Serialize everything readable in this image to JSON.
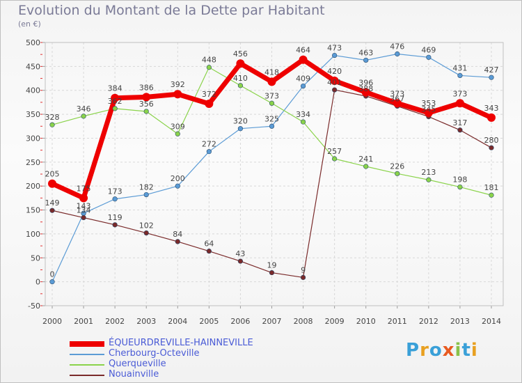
{
  "header": {
    "title": "Evolution du Montant de la Dette par Habitant",
    "subtitle": "(en €)"
  },
  "logo": {
    "letters": [
      "P",
      "r",
      "o",
      "x",
      "i",
      "t",
      "i"
    ],
    "colors": [
      "#3aa0d8",
      "#e8a020",
      "#3aa0d8",
      "#e85a20",
      "#8ac24a",
      "#3aa0d8",
      "#e8a020"
    ]
  },
  "chart_data": {
    "type": "line",
    "title": "Evolution du Montant de la Dette par Habitant",
    "ylabel": "(en €)",
    "xlabel": "",
    "x": [
      "2000",
      "2001",
      "2002",
      "2003",
      "2004",
      "2005",
      "2006",
      "2007",
      "2008",
      "2009",
      "2010",
      "2011",
      "2012",
      "2013",
      "2014"
    ],
    "ylim": [
      -50,
      500
    ],
    "yticks": [
      "500",
      "450",
      "400",
      "350",
      "300",
      "250",
      "200",
      "150",
      "100",
      "50",
      "0",
      "-50"
    ],
    "grid": true,
    "legend_position": "bottom-left",
    "series": [
      {
        "name": "ÉQUEURDREVILLE-HAINNEVILLE",
        "color": "#ee0000",
        "values": [
          205,
          175,
          384,
          386,
          392,
          372,
          456,
          418,
          464,
          420,
          396,
          373,
          353,
          373,
          343
        ],
        "labels": [
          "205",
          "175",
          "384",
          "386",
          "392",
          "372",
          "456",
          "418",
          "464",
          "420",
          "396",
          "373",
          "353",
          "373",
          "343"
        ]
      },
      {
        "name": "Cherbourg-Octeville",
        "color": "#5b9bd5",
        "values": [
          0,
          143,
          173,
          182,
          200,
          272,
          320,
          325,
          409,
          473,
          463,
          476,
          469,
          431,
          427
        ],
        "labels": [
          "0",
          "143",
          "173",
          "182",
          "200",
          "272",
          "320",
          "325",
          "409",
          "473",
          "463",
          "476",
          "469",
          "431",
          "427"
        ]
      },
      {
        "name": "Querqueville",
        "color": "#8ad34a",
        "values": [
          328,
          346,
          362,
          356,
          309,
          448,
          410,
          373,
          334,
          257,
          241,
          226,
          213,
          198,
          181
        ],
        "labels": [
          "328",
          "346",
          "362",
          "356",
          "309",
          "448",
          "410",
          "373",
          "334",
          "257",
          "241",
          "226",
          "213",
          "198",
          "181"
        ]
      },
      {
        "name": "Nouainville",
        "color": "#7a2a2a",
        "values": [
          149,
          134,
          119,
          102,
          84,
          64,
          43,
          19,
          9,
          401,
          388,
          367,
          345,
          317,
          280
        ],
        "labels": [
          "149",
          "134",
          "119",
          "102",
          "84",
          "64",
          "43",
          "19",
          "9",
          "401",
          "388",
          "367",
          "345",
          "317",
          "280"
        ]
      }
    ]
  }
}
